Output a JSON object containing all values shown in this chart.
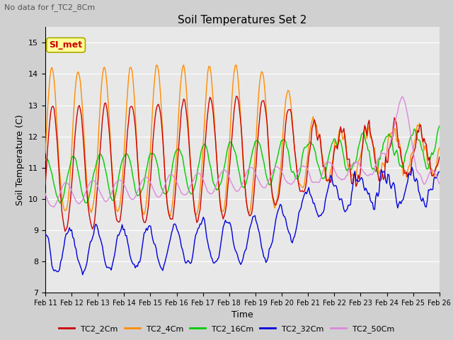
{
  "title": "Soil Temperatures Set 2",
  "subtitle": "No data for f_TC2_8Cm",
  "xlabel": "Time",
  "ylabel": "Soil Temperature (C)",
  "ylim": [
    7.0,
    15.5
  ],
  "yticks": [
    7.0,
    8.0,
    9.0,
    10.0,
    11.0,
    12.0,
    13.0,
    14.0,
    15.0
  ],
  "xtick_labels": [
    "Feb 11",
    "Feb 12",
    "Feb 13",
    "Feb 14",
    "Feb 15",
    "Feb 16",
    "Feb 17",
    "Feb 18",
    "Feb 19",
    "Feb 20",
    "Feb 21",
    "Feb 22",
    "Feb 23",
    "Feb 24",
    "Feb 25",
    "Feb 26"
  ],
  "legend_entries": [
    "TC2_2Cm",
    "TC2_4Cm",
    "TC2_16Cm",
    "TC2_32Cm",
    "TC2_50Cm"
  ],
  "line_colors": {
    "TC2_2Cm": "#cc0000",
    "TC2_4Cm": "#ff8c00",
    "TC2_16Cm": "#00cc00",
    "TC2_32Cm": "#0000dd",
    "TC2_50Cm": "#dd88dd"
  },
  "annotation_box_text": "SI_met",
  "annotation_box_facecolor": "#ffff99",
  "annotation_box_edgecolor": "#aaaa00",
  "plot_bg": "#e8e8e8",
  "fig_bg": "#d0d0d0",
  "grid_color": "#ffffff"
}
